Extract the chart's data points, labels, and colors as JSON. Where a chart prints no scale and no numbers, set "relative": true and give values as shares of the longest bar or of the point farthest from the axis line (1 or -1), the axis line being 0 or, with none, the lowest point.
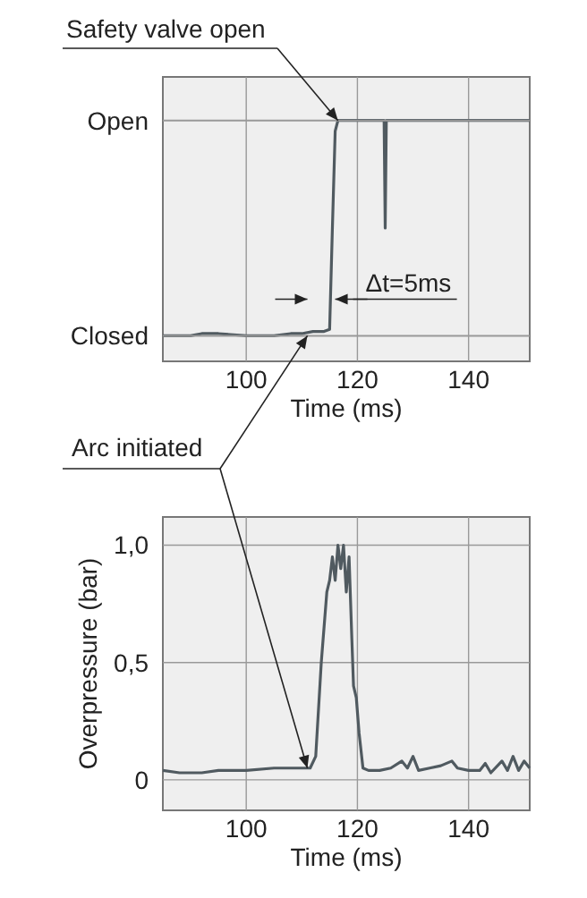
{
  "chart_data": [
    {
      "type": "line",
      "relative": true,
      "xlabel": "Time (ms)",
      "xlim": [
        85,
        151
      ],
      "xticks": [
        100,
        120,
        140
      ],
      "grid": "x",
      "marker": "none",
      "line_style": "solid",
      "ref_lines": [
        {
          "axis": "y",
          "value": 1,
          "label": "Open"
        },
        {
          "axis": "y",
          "value": 0,
          "label": "Closed"
        }
      ],
      "series": [
        {
          "color": "#505a60",
          "x": [
            85,
            90,
            92,
            95,
            100,
            105,
            108,
            110,
            112,
            114,
            115,
            115.5,
            116,
            116.5,
            118,
            120,
            122,
            122.5,
            123,
            124,
            124.8,
            125,
            125.2,
            126,
            130,
            140,
            151
          ],
          "values": [
            0,
            0,
            0.01,
            0.01,
            0,
            0,
            0.01,
            0.01,
            0.02,
            0.02,
            0.03,
            0.5,
            0.95,
            1,
            1,
            1,
            1,
            1,
            1,
            1,
            1,
            0.5,
            1,
            1,
            1,
            1,
            1
          ]
        }
      ],
      "annotations": [
        {
          "text": "Safety valve open",
          "x": 116.5,
          "y": 1
        },
        {
          "text": "Δt=5ms",
          "x": 116,
          "y": 0.17
        }
      ]
    },
    {
      "type": "line",
      "xlabel": "Time (ms)",
      "ylabel": "Overpressure (bar)",
      "xlim": [
        85,
        151
      ],
      "xticks": [
        100,
        120,
        140
      ],
      "ylim": [
        -0.13,
        1.12
      ],
      "yticks": [
        0,
        {
          "value": 0.5,
          "label": "0,5"
        },
        {
          "value": 1,
          "label": "1,0"
        }
      ],
      "grid": true,
      "marker": "none",
      "line_style": "solid",
      "series": [
        {
          "color": "#505a60",
          "x": [
            85,
            88,
            92,
            95,
            100,
            105,
            110,
            111.5,
            112.5,
            113.5,
            114.5,
            115,
            115.5,
            116,
            116.5,
            117,
            117.5,
            118,
            118.5,
            119,
            119.3,
            119.8,
            120.3,
            121,
            122,
            124,
            126,
            128,
            129,
            130,
            131,
            133,
            135,
            137,
            138,
            140,
            142,
            143,
            144,
            146,
            147,
            148,
            149,
            150,
            151
          ],
          "values": [
            0.04,
            0.03,
            0.03,
            0.04,
            0.04,
            0.05,
            0.05,
            0.05,
            0.1,
            0.5,
            0.8,
            0.85,
            0.95,
            0.85,
            1.0,
            0.9,
            1.0,
            0.8,
            0.95,
            0.6,
            0.4,
            0.35,
            0.2,
            0.05,
            0.04,
            0.04,
            0.05,
            0.08,
            0.05,
            0.1,
            0.04,
            0.05,
            0.06,
            0.08,
            0.05,
            0.04,
            0.04,
            0.07,
            0.03,
            0.08,
            0.04,
            0.1,
            0.04,
            0.08,
            0.05
          ]
        }
      ],
      "annotations": [
        {
          "text": "Arc initiated",
          "x": 111,
          "y": 0.05
        }
      ]
    }
  ]
}
